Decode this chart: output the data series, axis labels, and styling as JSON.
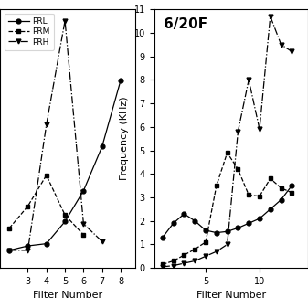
{
  "left_plot": {
    "PRL": {
      "x": [
        2,
        3,
        4,
        5,
        6,
        7,
        8
      ],
      "y": [
        0.8,
        1.0,
        1.1,
        2.1,
        3.5,
        5.5,
        8.5
      ],
      "marker": "o",
      "linestyle": "-",
      "label": "PRL"
    },
    "PRM": {
      "x": [
        2,
        3,
        4,
        5,
        6
      ],
      "y": [
        1.8,
        2.8,
        4.2,
        2.4,
        1.5
      ],
      "marker": "s",
      "linestyle": "--",
      "label": "PRM"
    },
    "PRH": {
      "x": [
        2,
        3,
        4,
        5,
        6,
        7
      ],
      "y": [
        0.8,
        0.8,
        6.5,
        11.2,
        2.0,
        1.2
      ],
      "marker": "v",
      "linestyle": "-.",
      "label": "PRH"
    },
    "xlim": [
      1.5,
      8.8
    ],
    "ylim_auto": true,
    "xticks": [
      3,
      4,
      5,
      6,
      7,
      8
    ],
    "xlabel": "Filter Number",
    "ylabel": "",
    "title": ""
  },
  "right_plot": {
    "PRL": {
      "x": [
        1,
        2,
        3,
        4,
        5,
        6,
        7,
        8,
        9,
        10,
        11,
        12,
        13
      ],
      "y": [
        1.3,
        1.9,
        2.3,
        2.0,
        1.6,
        1.5,
        1.55,
        1.7,
        1.9,
        2.1,
        2.5,
        2.9,
        3.5
      ],
      "marker": "o",
      "linestyle": "-",
      "label": "PRL"
    },
    "PRM": {
      "x": [
        1,
        2,
        3,
        4,
        5,
        6,
        7,
        8,
        9,
        10,
        11,
        12,
        13
      ],
      "y": [
        0.15,
        0.3,
        0.55,
        0.8,
        1.1,
        3.5,
        4.9,
        4.2,
        3.1,
        3.05,
        3.8,
        3.4,
        3.2
      ],
      "marker": "s",
      "linestyle": "--",
      "label": "PRM"
    },
    "PRH": {
      "x": [
        1,
        2,
        3,
        4,
        5,
        6,
        7,
        8,
        9,
        10,
        11,
        12,
        13
      ],
      "y": [
        0.05,
        0.1,
        0.2,
        0.3,
        0.5,
        0.7,
        1.0,
        5.8,
        8.0,
        5.9,
        10.7,
        9.5,
        9.2
      ],
      "marker": "v",
      "linestyle": "-.",
      "label": "PRH"
    },
    "xlim": [
      0.2,
      14.5
    ],
    "xticks": [
      5,
      10
    ],
    "ylim": [
      0,
      11
    ],
    "yticks": [
      0,
      1,
      2,
      3,
      4,
      5,
      6,
      7,
      8,
      9,
      10,
      11
    ],
    "xlabel": "Filter Number",
    "ylabel": "Frequency (KHz)",
    "title": "6/20F"
  },
  "line_color": "#000000",
  "marker_size": 3.5,
  "line_width": 0.9,
  "font_size_ticks": 7,
  "font_size_label": 8,
  "font_size_legend": 6.5,
  "font_size_title": 11
}
